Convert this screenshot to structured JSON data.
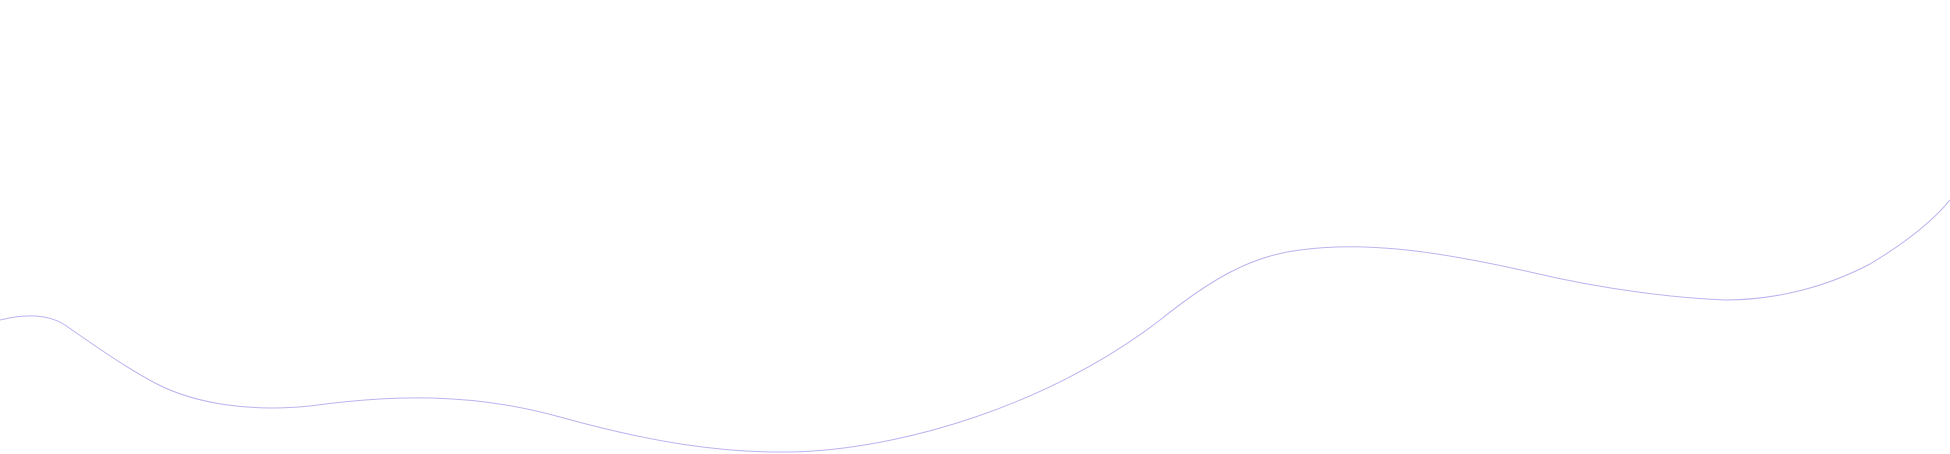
{
  "decoration": {
    "name": "wave-line",
    "stroke_color": "#b9b4ee",
    "background_color": "#ffffff"
  }
}
